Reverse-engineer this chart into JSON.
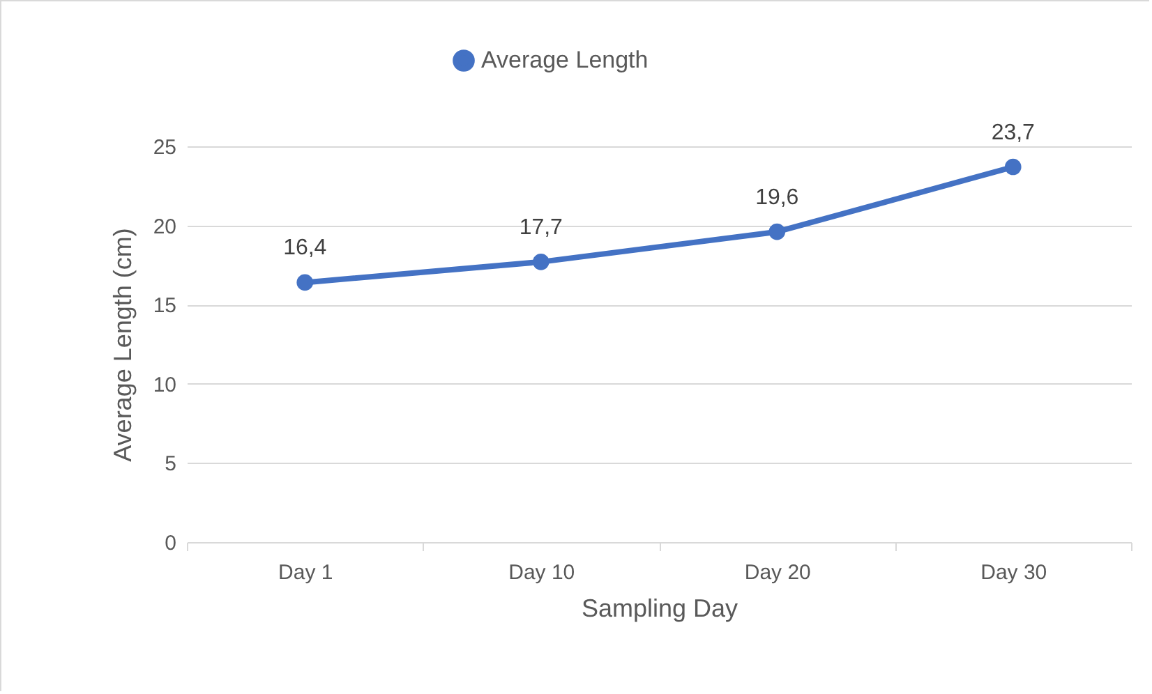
{
  "chart_data": {
    "type": "line",
    "xlabel": "Sampling Day",
    "ylabel": "Average Length (cm)",
    "categories": [
      "Day 1",
      "Day 10",
      "Day 20",
      "Day 30"
    ],
    "series": [
      {
        "name": "Average Length",
        "color": "#4472c4",
        "values": [
          16.4,
          17.7,
          19.6,
          23.7
        ],
        "value_labels": [
          "16,4",
          "17,7",
          "19,6",
          "23,7"
        ]
      }
    ],
    "ylim": [
      0,
      25
    ],
    "yticks": [
      0,
      5,
      10,
      15,
      20,
      25
    ],
    "grid": "y",
    "legend": "top",
    "marker": "circle",
    "line_style": "solid"
  }
}
